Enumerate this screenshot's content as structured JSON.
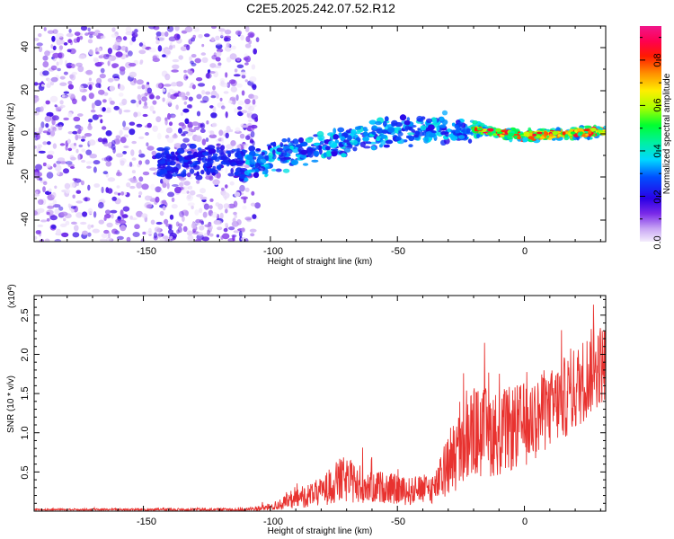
{
  "chart_data": [
    {
      "type": "heatmap",
      "title": "C2E5.2025.242.07.52.R12",
      "xlabel": "Height of straight line (km)",
      "ylabel": "Frequency (Hz)",
      "xlim": [
        -193,
        32
      ],
      "ylim": [
        -50,
        50
      ],
      "xticks": [
        "-150",
        "-100",
        "-50",
        "0"
      ],
      "yticks": [
        "-40",
        "-20",
        "0",
        "20",
        "40"
      ],
      "colorbar": {
        "label": "Normalized spectral amplitude",
        "range": [
          0.0,
          0.95
        ],
        "ticks": [
          "0.0",
          "0.2",
          "0.4",
          "0.6",
          "0.8"
        ]
      },
      "ridge": [
        {
          "x": -140,
          "freq": -13
        },
        {
          "x": -120,
          "freq": -13
        },
        {
          "x": -105,
          "freq": -14
        },
        {
          "x": -95,
          "freq": -10
        },
        {
          "x": -80,
          "freq": -6
        },
        {
          "x": -60,
          "freq": 0
        },
        {
          "x": -40,
          "freq": 2
        },
        {
          "x": -20,
          "freq": 2
        },
        {
          "x": 0,
          "freq": -1
        },
        {
          "x": 15,
          "freq": 0
        },
        {
          "x": 30,
          "freq": 1
        }
      ],
      "noise_region": {
        "x_from": -193,
        "x_to": -113
      }
    },
    {
      "type": "line",
      "xlabel": "Height of straight line (km)",
      "ylabel": "SNR (10 * v/v)",
      "yscale_label": "(x10",
      "yscale_exp": "4",
      "xlim": [
        -193,
        32
      ],
      "ylim": [
        0,
        2.75
      ],
      "xticks": [
        "-150",
        "-100",
        "-50",
        "0"
      ],
      "yticks": [
        "0.5",
        "1.0",
        "1.5",
        "2.0",
        "2.5"
      ],
      "color": "#e8322f",
      "envelope": [
        {
          "x": -193,
          "mean": 0.02,
          "spread": 0.01
        },
        {
          "x": -110,
          "mean": 0.02,
          "spread": 0.02
        },
        {
          "x": -100,
          "mean": 0.05,
          "spread": 0.05
        },
        {
          "x": -90,
          "mean": 0.15,
          "spread": 0.12
        },
        {
          "x": -80,
          "mean": 0.25,
          "spread": 0.18
        },
        {
          "x": -72,
          "mean": 0.4,
          "spread": 0.3
        },
        {
          "x": -65,
          "mean": 0.35,
          "spread": 0.25
        },
        {
          "x": -55,
          "mean": 0.3,
          "spread": 0.2
        },
        {
          "x": -45,
          "mean": 0.25,
          "spread": 0.18
        },
        {
          "x": -35,
          "mean": 0.3,
          "spread": 0.2
        },
        {
          "x": -28,
          "mean": 0.7,
          "spread": 0.5
        },
        {
          "x": -20,
          "mean": 1.0,
          "spread": 0.6
        },
        {
          "x": -10,
          "mean": 1.0,
          "spread": 0.55
        },
        {
          "x": 0,
          "mean": 1.1,
          "spread": 0.55
        },
        {
          "x": 10,
          "mean": 1.3,
          "spread": 0.5
        },
        {
          "x": 20,
          "mean": 1.55,
          "spread": 0.55
        },
        {
          "x": 28,
          "mean": 1.85,
          "spread": 0.55
        },
        {
          "x": 32,
          "mean": 1.9,
          "spread": 0.5
        }
      ]
    }
  ]
}
